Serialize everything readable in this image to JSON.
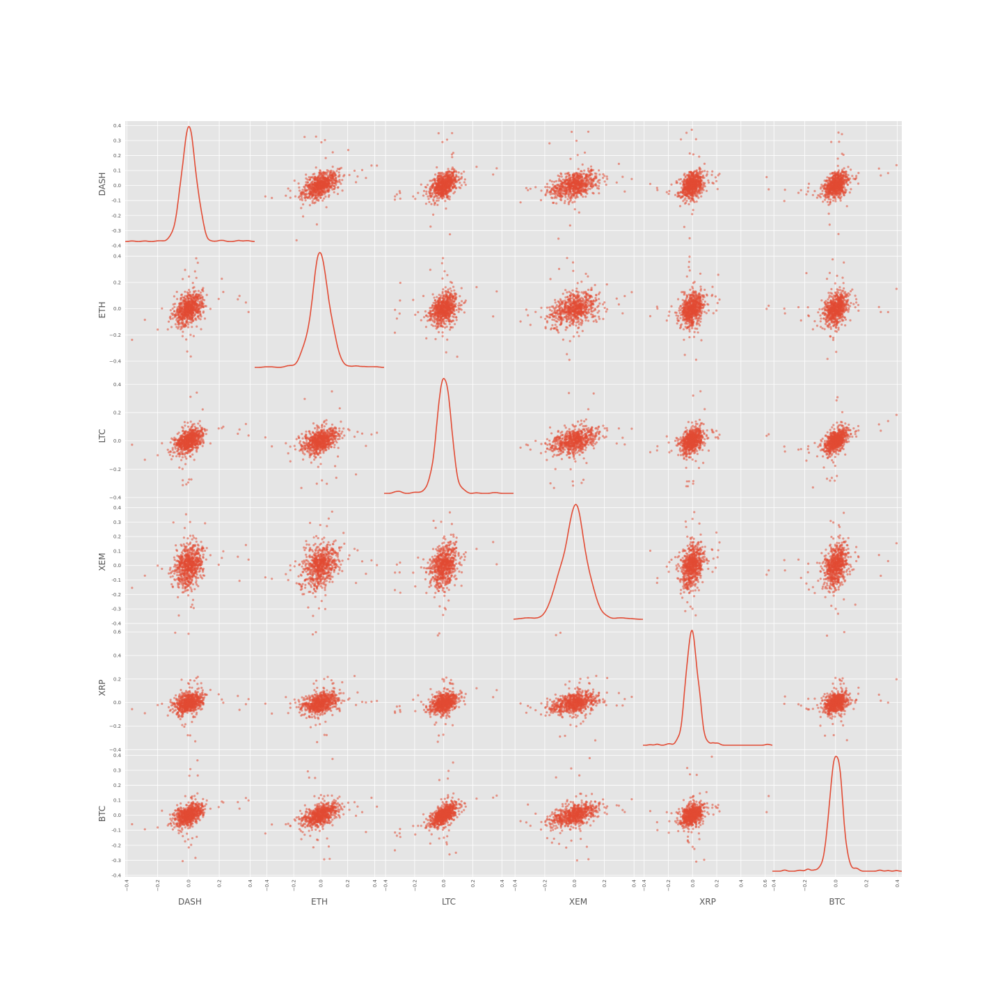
{
  "chart_data": {
    "type": "scatter_matrix",
    "variables": [
      "DASH",
      "ETH",
      "LTC",
      "XEM",
      "XRP",
      "BTC"
    ],
    "diagonal": "kde",
    "style": {
      "panel_bg": "#e5e5e5",
      "grid_color": "#ffffff",
      "point_color": "#e24a33",
      "line_color": "#e24a33",
      "text_color": "#555555"
    },
    "grid": true,
    "axes": {
      "DASH": {
        "range": [
          -0.41,
          0.43
        ],
        "x_ticks": [
          "−0.4",
          "−0.2",
          "0.0",
          "0.2",
          "0.4"
        ],
        "x_tick_values": [
          -0.4,
          -0.2,
          0.0,
          0.2,
          0.4
        ],
        "y_ticks": [
          "0.4",
          "0.3",
          "0.2",
          "0.1",
          "0.0",
          "-0.1",
          "-0.2",
          "-0.3",
          "-0.4"
        ],
        "y_tick_values": [
          0.4,
          0.3,
          0.2,
          0.1,
          0.0,
          -0.1,
          -0.2,
          -0.3,
          -0.4
        ]
      },
      "ETH": {
        "range": [
          -0.49,
          0.47
        ],
        "x_ticks": [
          "−0.4",
          "−0.2",
          "0.0",
          "0.2",
          "0.4"
        ],
        "x_tick_values": [
          -0.4,
          -0.2,
          0.0,
          0.2,
          0.4
        ],
        "y_ticks": [
          "0.4",
          "0.2",
          "0.0",
          "−0.2",
          "−0.4"
        ],
        "y_tick_values": [
          0.4,
          0.2,
          0.0,
          -0.2,
          -0.4
        ]
      },
      "LTC": {
        "range": [
          -0.41,
          0.48
        ],
        "x_ticks": [
          "−0.4",
          "−0.2",
          "0.0",
          "0.2",
          "0.4"
        ],
        "x_tick_values": [
          -0.4,
          -0.2,
          0.0,
          0.2,
          0.4
        ],
        "y_ticks": [
          "0.4",
          "0.2",
          "0.0",
          "−0.2",
          "−0.4"
        ],
        "y_tick_values": [
          0.4,
          0.2,
          0.0,
          -0.2,
          -0.4
        ]
      },
      "XEM": {
        "range": [
          -0.41,
          0.46
        ],
        "x_ticks": [
          "−0.4",
          "−0.2",
          "0.0",
          "0.2",
          "0.4"
        ],
        "x_tick_values": [
          -0.4,
          -0.2,
          0.0,
          0.2,
          0.4
        ],
        "y_ticks": [
          "0.4",
          "0.3",
          "0.2",
          "0.1",
          "0.0",
          "-0.1",
          "-0.2",
          "-0.3",
          "-0.4"
        ],
        "y_tick_values": [
          0.4,
          0.3,
          0.2,
          0.1,
          0.0,
          -0.1,
          -0.2,
          -0.3,
          -0.4
        ]
      },
      "XRP": {
        "range": [
          -0.41,
          0.66
        ],
        "x_ticks": [
          "−0.4",
          "−0.2",
          "0.0",
          "0.2",
          "0.4",
          "0.6"
        ],
        "x_tick_values": [
          -0.4,
          -0.2,
          0.0,
          0.2,
          0.4,
          0.6
        ],
        "y_ticks": [
          "0.6",
          "0.4",
          "0.2",
          "0.0",
          "−0.2",
          "−0.4"
        ],
        "y_tick_values": [
          0.6,
          0.4,
          0.2,
          0.0,
          -0.2,
          -0.4
        ]
      },
      "BTC": {
        "range": [
          -0.41,
          0.43
        ],
        "x_ticks": [
          "−0.4",
          "−0.2",
          "0.0",
          "0.2",
          "0.4"
        ],
        "x_tick_values": [
          -0.4,
          -0.2,
          0.0,
          0.2,
          0.4
        ],
        "y_ticks": [
          "0.4",
          "0.3",
          "0.2",
          "0.1",
          "0.0",
          "-0.1",
          "-0.2",
          "-0.3",
          "-0.4"
        ],
        "y_tick_values": [
          0.4,
          0.3,
          0.2,
          0.1,
          0.0,
          -0.1,
          -0.2,
          -0.3,
          -0.4
        ]
      }
    },
    "distributions": {
      "DASH": {
        "center": 0.0,
        "spread": 0.045
      },
      "ETH": {
        "center": 0.0,
        "spread": 0.06
      },
      "LTC": {
        "center": 0.0,
        "spread": 0.045
      },
      "XEM": {
        "center": 0.0,
        "spread": 0.075
      },
      "XRP": {
        "center": 0.0,
        "spread": 0.045
      },
      "BTC": {
        "center": 0.0,
        "spread": 0.035
      }
    },
    "correlations": {
      "DASH-ETH": 0.35,
      "DASH-LTC": 0.3,
      "DASH-XEM": 0.25,
      "DASH-XRP": 0.15,
      "DASH-BTC": 0.35,
      "ETH-LTC": 0.25,
      "ETH-XEM": 0.2,
      "ETH-XRP": 0.15,
      "ETH-BTC": 0.3,
      "LTC-XEM": 0.2,
      "LTC-XRP": 0.2,
      "LTC-BTC": 0.55,
      "XEM-XRP": 0.15,
      "XEM-BTC": 0.25,
      "XRP-BTC": 0.2
    },
    "n_points": 700
  }
}
